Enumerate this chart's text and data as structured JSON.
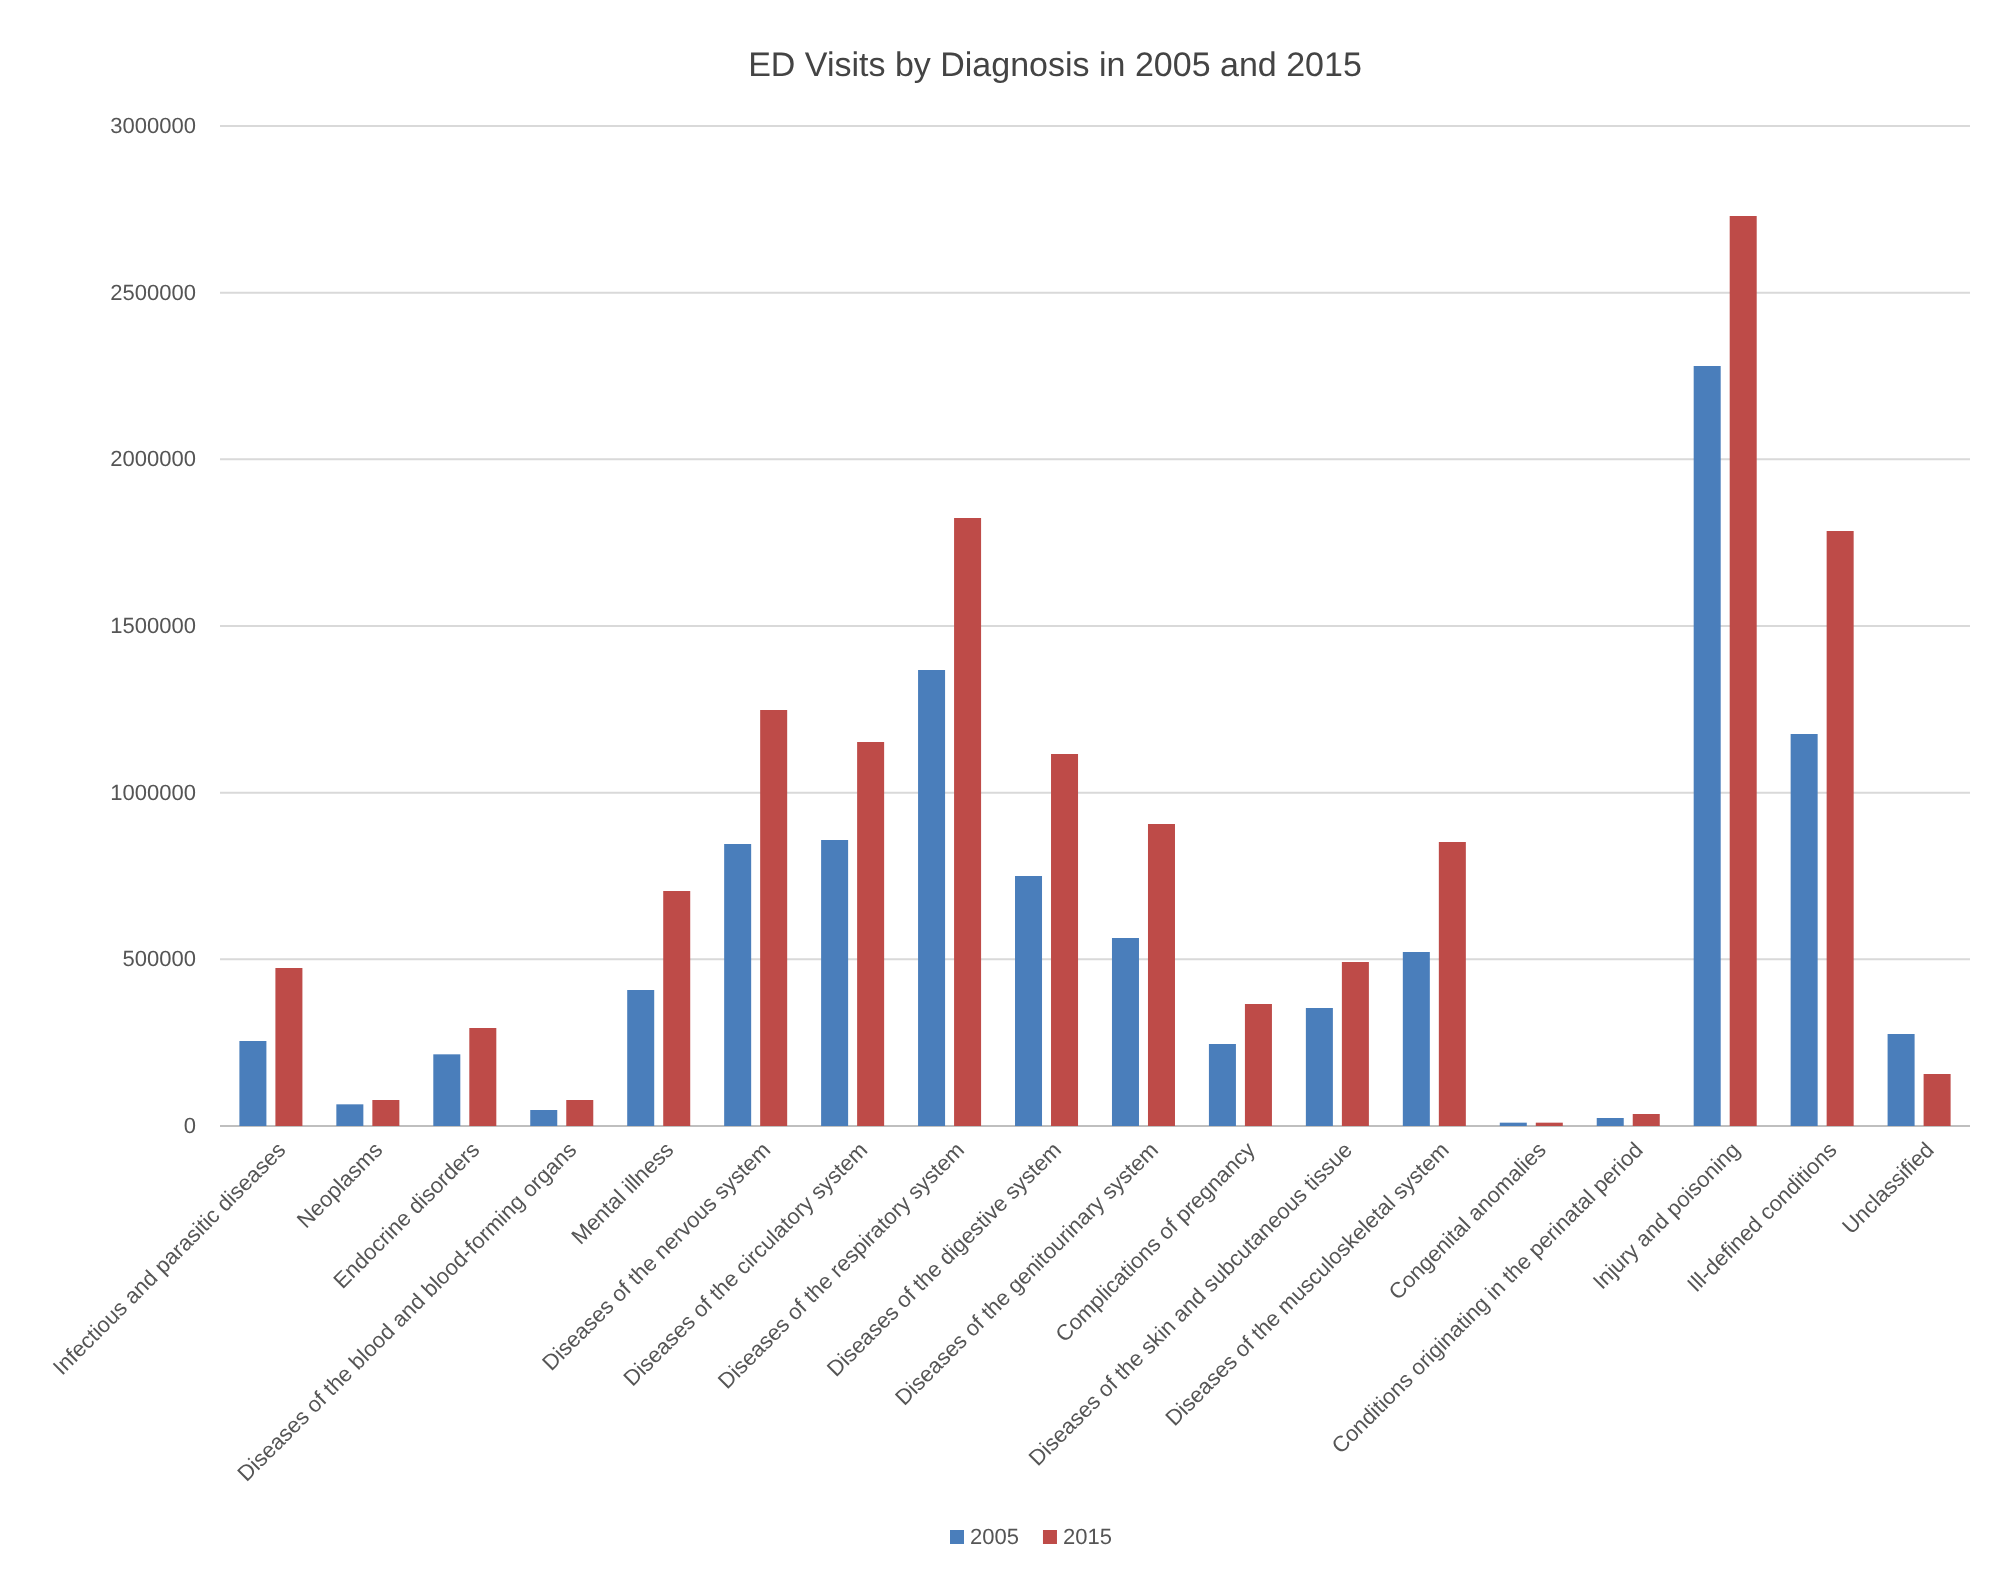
{
  "chart_data": {
    "type": "bar",
    "title": "ED Visits by Diagnosis in 2005 and 2015",
    "categories": [
      "Infectious and parasitic diseases",
      "Neoplasms",
      "Endocrine  disorders",
      "Diseases of the blood and blood-forming organs",
      "Mental illness",
      "Diseases of the nervous system",
      "Diseases of the circulatory system",
      "Diseases of the respiratory system",
      "Diseases of the digestive system",
      "Diseases of the genitourinary system",
      "Complications of pregnancy",
      "Diseases of the skin and subcutaneous tissue",
      "Diseases of the musculoskeletal system",
      "Congenital anomalies",
      "Conditions originating in the perinatal period",
      "Injury and poisoning",
      "Ill-defined conditions",
      "Unclassified"
    ],
    "series": [
      {
        "name": "2005",
        "color": "#4a7ebb",
        "values": [
          255000,
          65000,
          215000,
          48000,
          408000,
          846000,
          858000,
          1368000,
          750000,
          564000,
          246000,
          354000,
          522000,
          10000,
          24000,
          2280000,
          1176000,
          276000
        ]
      },
      {
        "name": "2015",
        "color": "#be4b48",
        "values": [
          474000,
          78000,
          294000,
          78000,
          705000,
          1248000,
          1152000,
          1824000,
          1116000,
          906000,
          366000,
          492000,
          852000,
          10000,
          36000,
          2730000,
          1785000,
          156000
        ]
      }
    ],
    "ylim": [
      0,
      3000000
    ],
    "yticks": [
      0,
      500000,
      1000000,
      1500000,
      2000000,
      2500000,
      3000000
    ],
    "grid": "y",
    "legend": "bottom"
  }
}
